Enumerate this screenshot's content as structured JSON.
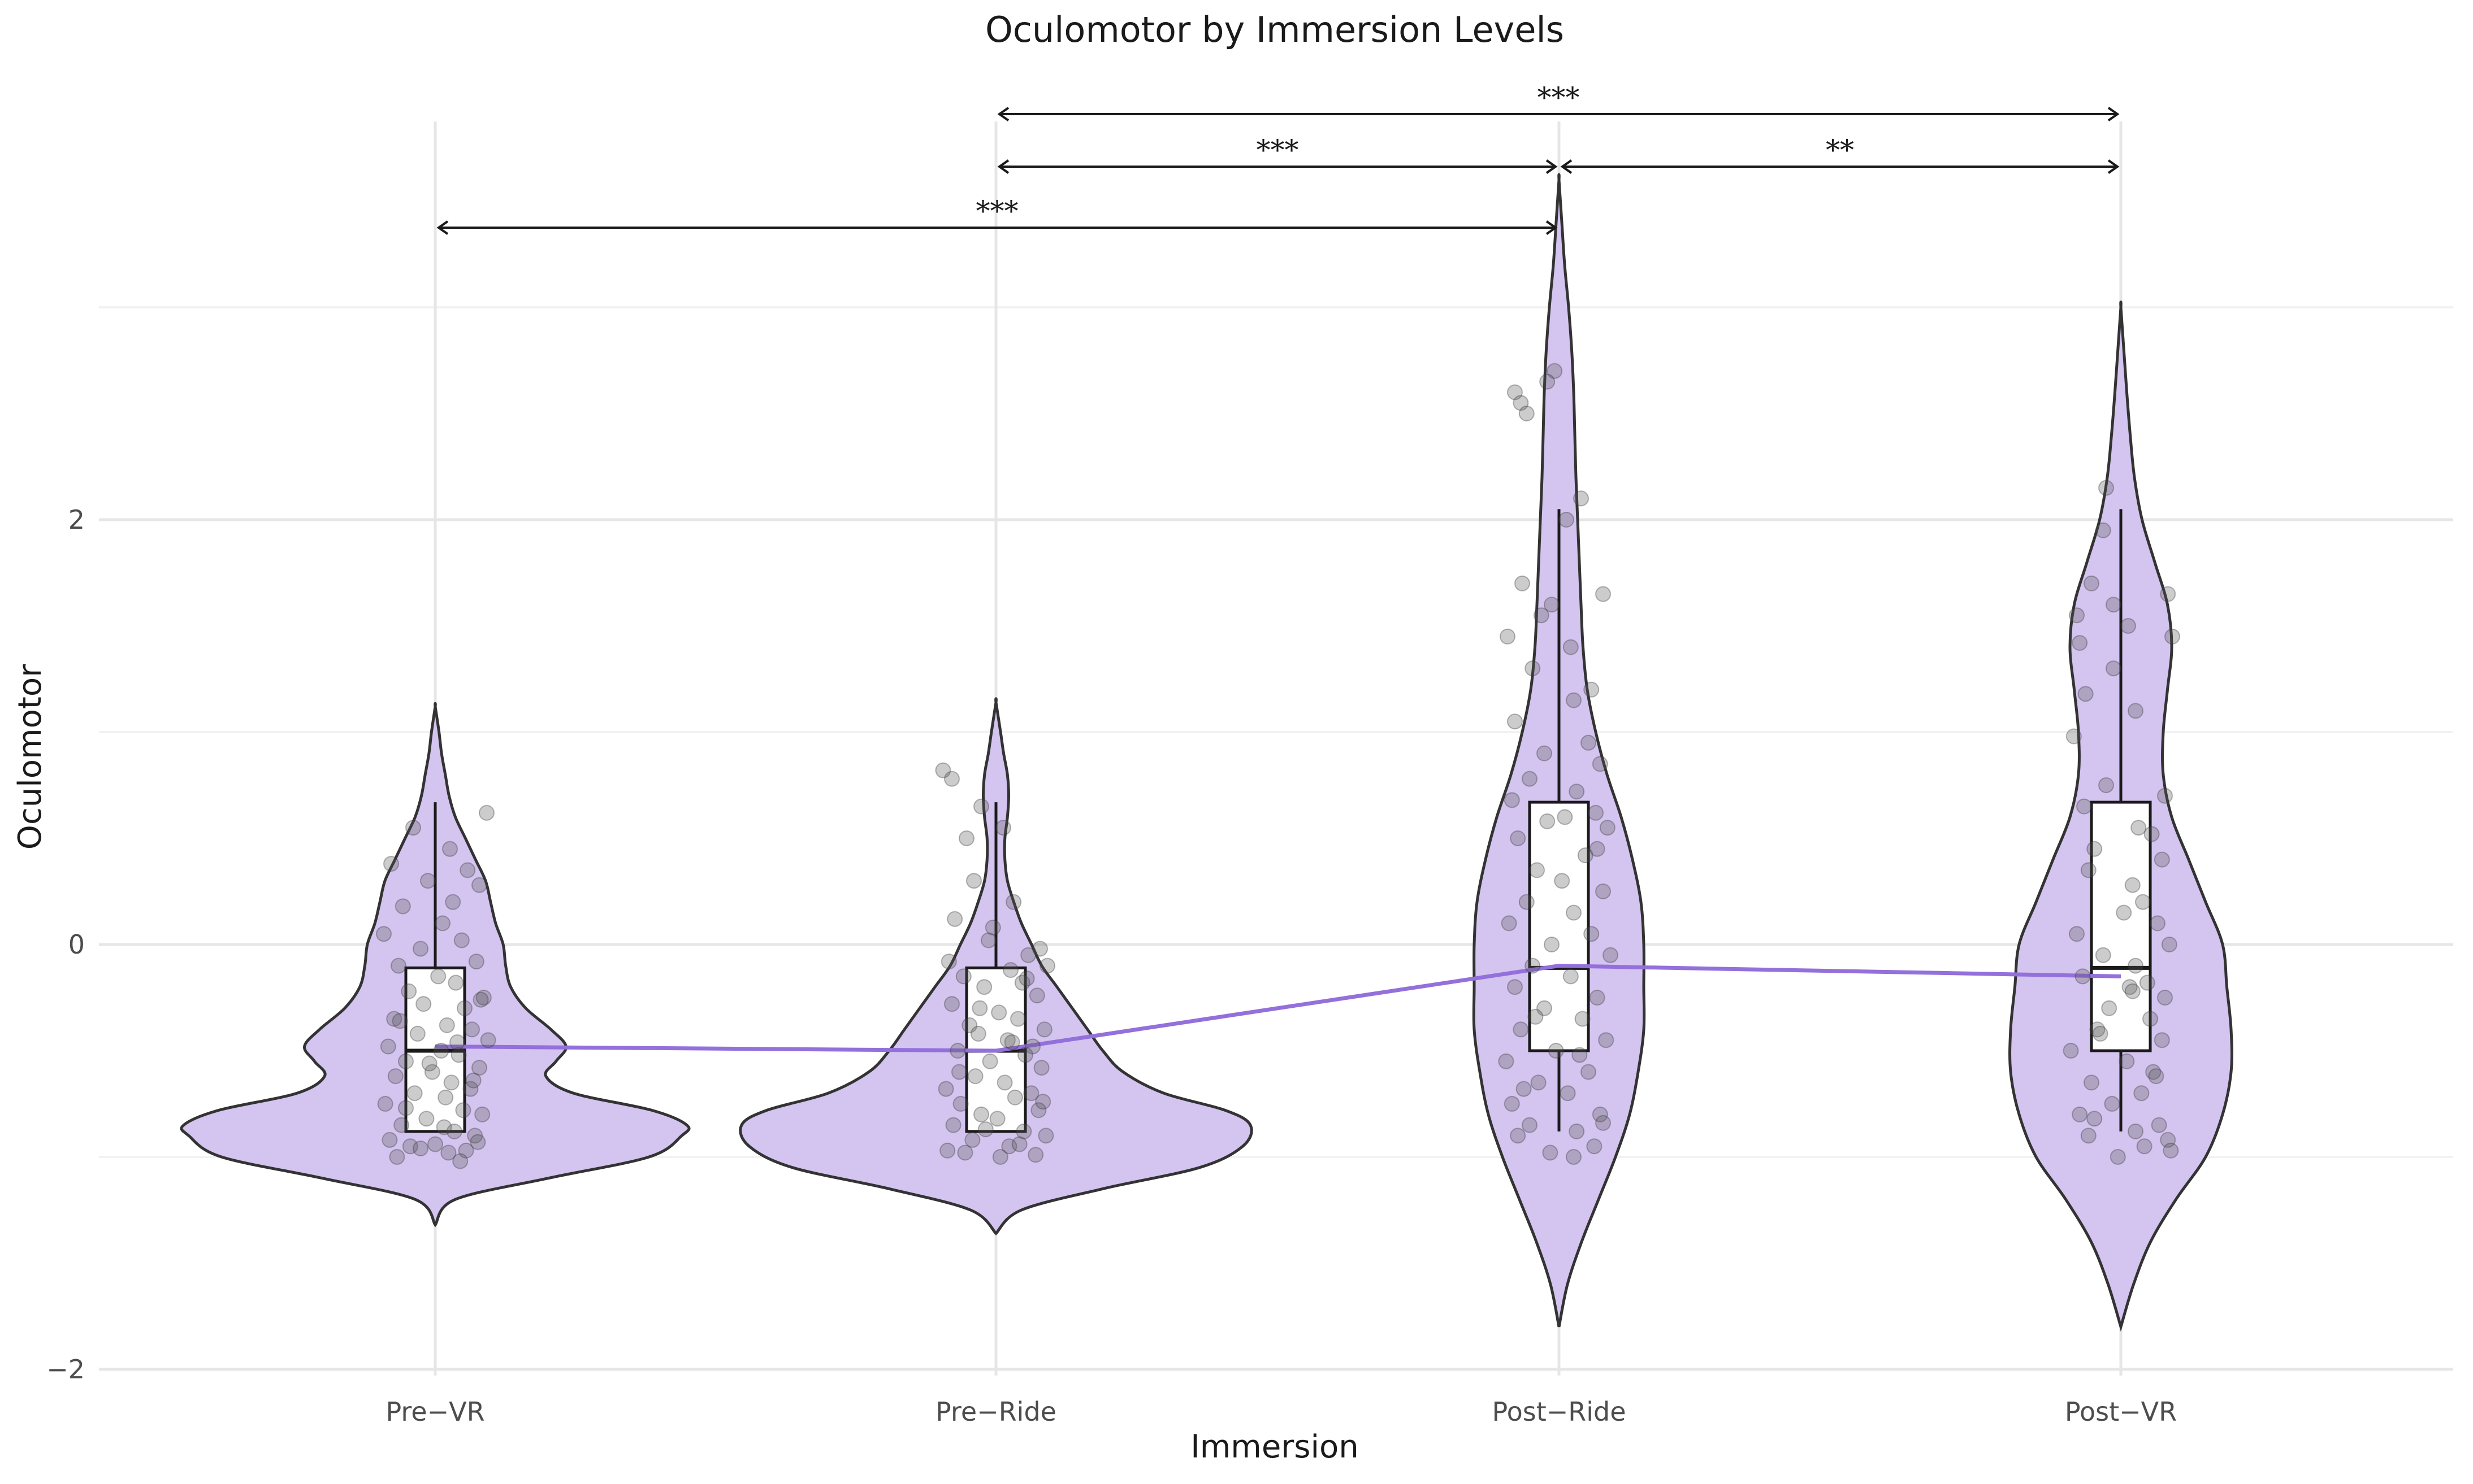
{
  "chart_data": {
    "type": "violin",
    "title": "Oculomotor by Immersion Levels",
    "xlabel": "Immersion",
    "ylabel": "Oculomotor",
    "categories": [
      "Pre−VR",
      "Pre−Ride",
      "Post−Ride",
      "Post−VR"
    ],
    "ylim": [
      -2.05,
      3.0
    ],
    "yticks": [
      -2,
      0,
      2
    ],
    "ytick_labels": [
      "−2",
      "0",
      "2"
    ],
    "grid": true,
    "colors": {
      "violin_fill": "#d4c4f0",
      "violin_stroke": "#333333",
      "box_fill": "#ffffff",
      "mean_line": "#9370db",
      "point": "#555555"
    },
    "violins": [
      {
        "category": "Pre−VR",
        "min": -1.32,
        "max": 1.12,
        "density": [
          [
            -1.32,
            0.0
          ],
          [
            -1.2,
            0.08
          ],
          [
            -1.1,
            0.45
          ],
          [
            -1.0,
            0.85
          ],
          [
            -0.9,
            0.98
          ],
          [
            -0.85,
            1.0
          ],
          [
            -0.78,
            0.86
          ],
          [
            -0.7,
            0.55
          ],
          [
            -0.62,
            0.44
          ],
          [
            -0.55,
            0.48
          ],
          [
            -0.48,
            0.52
          ],
          [
            -0.4,
            0.46
          ],
          [
            -0.3,
            0.36
          ],
          [
            -0.2,
            0.3
          ],
          [
            -0.1,
            0.28
          ],
          [
            0.0,
            0.27
          ],
          [
            0.1,
            0.24
          ],
          [
            0.2,
            0.22
          ],
          [
            0.3,
            0.2
          ],
          [
            0.4,
            0.16
          ],
          [
            0.5,
            0.12
          ],
          [
            0.6,
            0.08
          ],
          [
            0.7,
            0.055
          ],
          [
            0.8,
            0.04
          ],
          [
            0.9,
            0.025
          ],
          [
            1.0,
            0.015
          ],
          [
            1.12,
            0.0
          ]
        ]
      },
      {
        "category": "Pre−Ride",
        "min": -1.36,
        "max": 1.14,
        "density": [
          [
            -1.36,
            0.0
          ],
          [
            -1.25,
            0.1
          ],
          [
            -1.15,
            0.42
          ],
          [
            -1.05,
            0.8
          ],
          [
            -0.95,
            0.97
          ],
          [
            -0.85,
            1.0
          ],
          [
            -0.78,
            0.9
          ],
          [
            -0.7,
            0.66
          ],
          [
            -0.6,
            0.5
          ],
          [
            -0.5,
            0.42
          ],
          [
            -0.4,
            0.36
          ],
          [
            -0.3,
            0.3
          ],
          [
            -0.2,
            0.24
          ],
          [
            -0.1,
            0.18
          ],
          [
            0.0,
            0.14
          ],
          [
            0.1,
            0.1
          ],
          [
            0.2,
            0.07
          ],
          [
            0.3,
            0.045
          ],
          [
            0.4,
            0.035
          ],
          [
            0.5,
            0.035
          ],
          [
            0.6,
            0.045
          ],
          [
            0.7,
            0.05
          ],
          [
            0.8,
            0.045
          ],
          [
            0.9,
            0.03
          ],
          [
            1.0,
            0.018
          ],
          [
            1.14,
            0.0
          ]
        ]
      },
      {
        "category": "Post−Ride",
        "min": -1.8,
        "max": 3.6,
        "density": [
          [
            -1.8,
            0.0
          ],
          [
            -1.6,
            0.03
          ],
          [
            -1.4,
            0.08
          ],
          [
            -1.2,
            0.14
          ],
          [
            -1.0,
            0.2
          ],
          [
            -0.8,
            0.25
          ],
          [
            -0.6,
            0.28
          ],
          [
            -0.4,
            0.3
          ],
          [
            -0.2,
            0.3
          ],
          [
            0.0,
            0.3
          ],
          [
            0.2,
            0.29
          ],
          [
            0.4,
            0.26
          ],
          [
            0.6,
            0.22
          ],
          [
            0.8,
            0.17
          ],
          [
            1.0,
            0.13
          ],
          [
            1.2,
            0.1
          ],
          [
            1.4,
            0.085
          ],
          [
            1.6,
            0.078
          ],
          [
            1.8,
            0.072
          ],
          [
            2.0,
            0.066
          ],
          [
            2.2,
            0.06
          ],
          [
            2.4,
            0.056
          ],
          [
            2.6,
            0.052
          ],
          [
            2.8,
            0.045
          ],
          [
            3.0,
            0.034
          ],
          [
            3.2,
            0.02
          ],
          [
            3.4,
            0.01
          ],
          [
            3.6,
            0.0
          ]
        ]
      },
      {
        "category": "Post−VR",
        "min": -1.8,
        "max": 3.0,
        "density": [
          [
            -1.8,
            0.0
          ],
          [
            -1.6,
            0.03
          ],
          [
            -1.4,
            0.07
          ],
          [
            -1.2,
            0.13
          ],
          [
            -1.0,
            0.2
          ],
          [
            -0.8,
            0.24
          ],
          [
            -0.6,
            0.26
          ],
          [
            -0.4,
            0.26
          ],
          [
            -0.2,
            0.25
          ],
          [
            0.0,
            0.24
          ],
          [
            0.2,
            0.2
          ],
          [
            0.4,
            0.16
          ],
          [
            0.6,
            0.12
          ],
          [
            0.8,
            0.1
          ],
          [
            1.0,
            0.1
          ],
          [
            1.2,
            0.11
          ],
          [
            1.4,
            0.12
          ],
          [
            1.6,
            0.11
          ],
          [
            1.8,
            0.08
          ],
          [
            2.0,
            0.05
          ],
          [
            2.2,
            0.032
          ],
          [
            2.4,
            0.022
          ],
          [
            2.6,
            0.014
          ],
          [
            2.8,
            0.007
          ],
          [
            3.0,
            0.0
          ]
        ]
      }
    ],
    "boxplots": [
      {
        "category": "Pre−VR",
        "whisker_low": -0.88,
        "q1": -0.88,
        "median": -0.5,
        "q3": -0.11,
        "whisker_high": 0.67
      },
      {
        "category": "Pre−Ride",
        "whisker_low": -0.88,
        "q1": -0.88,
        "median": -0.5,
        "q3": -0.11,
        "whisker_high": 0.67
      },
      {
        "category": "Post−Ride",
        "whisker_low": -0.88,
        "q1": -0.5,
        "median": -0.11,
        "q3": 0.67,
        "whisker_high": 2.05
      },
      {
        "category": "Post−VR",
        "whisker_low": -0.88,
        "q1": -0.5,
        "median": -0.11,
        "q3": 0.67,
        "whisker_high": 2.05
      }
    ],
    "mean_line": {
      "name": "mean",
      "values": [
        -0.48,
        -0.5,
        -0.1,
        -0.15
      ]
    },
    "points": [
      {
        "category": "Pre−VR",
        "y": [
          0.62,
          0.55,
          0.45,
          0.38,
          0.35,
          0.3,
          0.28,
          0.2,
          0.18,
          0.1,
          0.05,
          0.02,
          -0.02,
          -0.08,
          -0.1,
          -0.15,
          -0.18,
          -0.22,
          -0.25,
          -0.28,
          -0.3,
          -0.35,
          -0.38,
          -0.4,
          -0.42,
          -0.45,
          -0.48,
          -0.5,
          -0.52,
          -0.55,
          -0.58,
          -0.6,
          -0.62,
          -0.65,
          -0.68,
          -0.7,
          -0.72,
          -0.75,
          -0.78,
          -0.8,
          -0.82,
          -0.85,
          -0.88,
          -0.9,
          -0.92,
          -0.94,
          -0.95,
          -0.97,
          -0.98,
          -1.0,
          -1.02,
          -0.96,
          -0.93,
          -0.86,
          -0.77,
          -0.64,
          -0.56,
          -0.46,
          -0.36,
          -0.26
        ],
        "dx": [
          0.35,
          -0.15,
          0.1,
          -0.3,
          0.22,
          -0.05,
          0.3,
          0.12,
          -0.22,
          0.05,
          -0.35,
          0.18,
          -0.1,
          0.28,
          -0.25,
          0.02,
          0.14,
          -0.18,
          0.33,
          -0.08,
          0.2,
          -0.28,
          0.08,
          0.25,
          -0.12,
          0.36,
          -0.32,
          0.04,
          0.16,
          -0.2,
          0.3,
          -0.02,
          -0.27,
          0.11,
          0.24,
          -0.14,
          0.07,
          -0.34,
          0.19,
          0.32,
          -0.06,
          -0.23,
          0.13,
          0.27,
          -0.31,
          0.0,
          -0.17,
          0.21,
          0.09,
          -0.26,
          0.17,
          -0.1,
          0.29,
          0.06,
          -0.2,
          0.26,
          -0.04,
          0.15,
          -0.24,
          0.31
        ]
      },
      {
        "category": "Pre−Ride",
        "y": [
          0.82,
          0.78,
          0.65,
          0.55,
          0.5,
          0.3,
          0.2,
          0.12,
          0.02,
          -0.02,
          -0.05,
          -0.08,
          -0.1,
          -0.12,
          -0.15,
          -0.18,
          -0.2,
          -0.24,
          -0.28,
          -0.32,
          -0.35,
          -0.38,
          -0.4,
          -0.42,
          -0.45,
          -0.48,
          -0.5,
          -0.52,
          -0.55,
          -0.58,
          -0.62,
          -0.65,
          -0.68,
          -0.7,
          -0.72,
          -0.75,
          -0.78,
          -0.8,
          -0.82,
          -0.85,
          -0.88,
          -0.9,
          -0.92,
          -0.95,
          -0.97,
          -0.99,
          -1.0,
          -0.98,
          -0.94,
          -0.87,
          -0.74,
          -0.6,
          -0.46,
          -0.3,
          -0.16,
          0.08
        ],
        "dx": [
          -0.36,
          -0.3,
          -0.1,
          0.05,
          -0.2,
          -0.15,
          0.12,
          -0.28,
          -0.05,
          0.3,
          0.22,
          -0.32,
          0.35,
          0.1,
          -0.22,
          0.18,
          -0.08,
          0.28,
          -0.3,
          0.02,
          0.15,
          -0.18,
          0.33,
          -0.12,
          0.08,
          0.25,
          -0.26,
          0.2,
          -0.04,
          0.31,
          -0.14,
          0.06,
          -0.34,
          0.24,
          0.13,
          -0.24,
          0.29,
          -0.1,
          0.01,
          -0.29,
          0.19,
          0.34,
          -0.16,
          0.09,
          -0.33,
          0.27,
          0.03,
          -0.21,
          0.16,
          -0.07,
          0.32,
          -0.25,
          0.11,
          -0.11,
          0.21,
          -0.02
        ]
      },
      {
        "category": "Post−Ride",
        "y": [
          2.7,
          2.65,
          2.6,
          2.55,
          2.5,
          2.1,
          2.0,
          1.7,
          1.65,
          1.6,
          1.55,
          1.45,
          1.4,
          1.3,
          1.15,
          1.05,
          0.95,
          0.9,
          0.85,
          0.78,
          0.72,
          0.68,
          0.62,
          0.6,
          0.58,
          0.55,
          0.5,
          0.42,
          0.35,
          0.3,
          0.25,
          0.2,
          0.15,
          0.1,
          0.05,
          0.0,
          -0.05,
          -0.1,
          -0.15,
          -0.2,
          -0.25,
          -0.3,
          -0.35,
          -0.4,
          -0.45,
          -0.5,
          -0.55,
          -0.6,
          -0.65,
          -0.7,
          -0.75,
          -0.8,
          -0.85,
          -0.88,
          -0.9,
          -0.95,
          -1.0,
          -0.98,
          -0.84,
          -0.68,
          -0.52,
          -0.34,
          0.45,
          1.2
        ],
        "dx": [
          -0.03,
          -0.08,
          -0.3,
          -0.26,
          -0.22,
          0.15,
          0.05,
          -0.25,
          0.3,
          -0.05,
          -0.12,
          -0.35,
          0.08,
          -0.18,
          0.1,
          -0.3,
          0.2,
          -0.1,
          0.28,
          -0.2,
          0.12,
          -0.32,
          0.25,
          0.04,
          -0.08,
          0.33,
          -0.28,
          0.18,
          -0.15,
          0.02,
          0.3,
          -0.22,
          0.1,
          -0.34,
          0.22,
          -0.05,
          0.35,
          -0.18,
          0.08,
          -0.3,
          0.26,
          -0.1,
          0.16,
          -0.26,
          0.32,
          -0.02,
          -0.36,
          0.2,
          -0.14,
          0.06,
          -0.32,
          0.28,
          -0.2,
          0.12,
          -0.28,
          0.24,
          0.1,
          -0.06,
          0.3,
          -0.24,
          0.14,
          -0.16,
          0.26,
          0.22
        ]
      },
      {
        "category": "Post−VR",
        "y": [
          2.15,
          1.95,
          1.7,
          1.65,
          1.6,
          1.55,
          1.5,
          1.45,
          1.42,
          1.3,
          1.1,
          0.98,
          0.75,
          0.7,
          0.65,
          0.55,
          0.45,
          0.4,
          0.35,
          0.28,
          0.2,
          0.15,
          0.1,
          0.05,
          0.0,
          -0.05,
          -0.1,
          -0.15,
          -0.18,
          -0.2,
          -0.25,
          -0.3,
          -0.35,
          -0.4,
          -0.45,
          -0.5,
          -0.55,
          -0.6,
          -0.65,
          -0.7,
          -0.75,
          -0.8,
          -0.85,
          -0.88,
          -0.9,
          -0.92,
          -0.95,
          -1.0,
          -0.97,
          -0.82,
          -0.62,
          -0.42,
          -0.22,
          0.52,
          1.18
        ],
        "dx": [
          -0.1,
          -0.12,
          -0.2,
          0.32,
          -0.05,
          -0.3,
          0.05,
          0.35,
          -0.28,
          -0.05,
          0.1,
          -0.32,
          -0.1,
          0.3,
          -0.25,
          0.12,
          -0.18,
          0.28,
          -0.22,
          0.08,
          0.15,
          0.02,
          0.25,
          -0.3,
          0.33,
          -0.12,
          0.1,
          -0.26,
          0.18,
          0.06,
          0.3,
          -0.08,
          0.2,
          -0.16,
          0.28,
          -0.34,
          0.04,
          0.22,
          -0.2,
          0.14,
          -0.06,
          -0.28,
          0.26,
          0.1,
          -0.22,
          0.32,
          0.16,
          -0.02,
          0.34,
          -0.18,
          0.24,
          -0.14,
          0.08,
          0.21,
          -0.24
        ]
      }
    ],
    "significance": [
      {
        "from": "Pre−Ride",
        "to": "Post−VR",
        "label": "***",
        "level": 3
      },
      {
        "from": "Pre−Ride",
        "to": "Post−Ride",
        "label": "***",
        "level": 2
      },
      {
        "from": "Post−Ride",
        "to": "Post−VR",
        "label": "**",
        "level": 2
      },
      {
        "from": "Pre−VR",
        "to": "Post−Ride",
        "label": "***",
        "level": 1
      }
    ]
  }
}
